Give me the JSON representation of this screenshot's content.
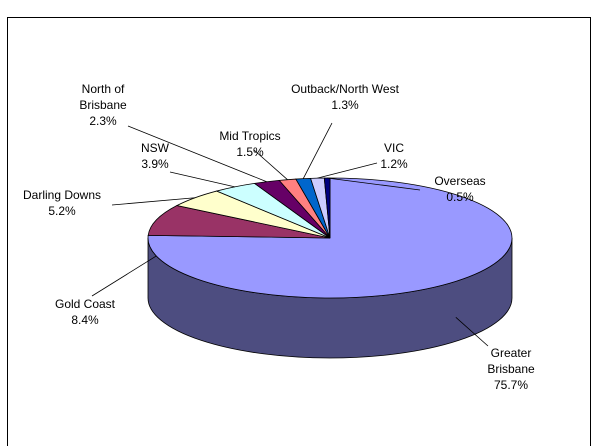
{
  "chart_data": {
    "type": "pie3d",
    "categories": [
      "Greater Brisbane",
      "Gold Coast",
      "Darling Downs",
      "NSW",
      "North of Brisbane",
      "Mid Tropics",
      "Outback/North West",
      "VIC",
      "Overseas"
    ],
    "values": [
      75.7,
      8.4,
      5.2,
      3.9,
      2.3,
      1.5,
      1.3,
      1.2,
      0.5
    ],
    "value_labels": [
      "75.7%",
      "8.4%",
      "5.2%",
      "3.9%",
      "2.3%",
      "1.5%",
      "1.3%",
      "1.2%",
      "0.5%"
    ],
    "colors": [
      "#9999ff",
      "#993366",
      "#ffffcc",
      "#ccffff",
      "#660066",
      "#ff8080",
      "#0066cc",
      "#ccccff",
      "#000080"
    ]
  }
}
